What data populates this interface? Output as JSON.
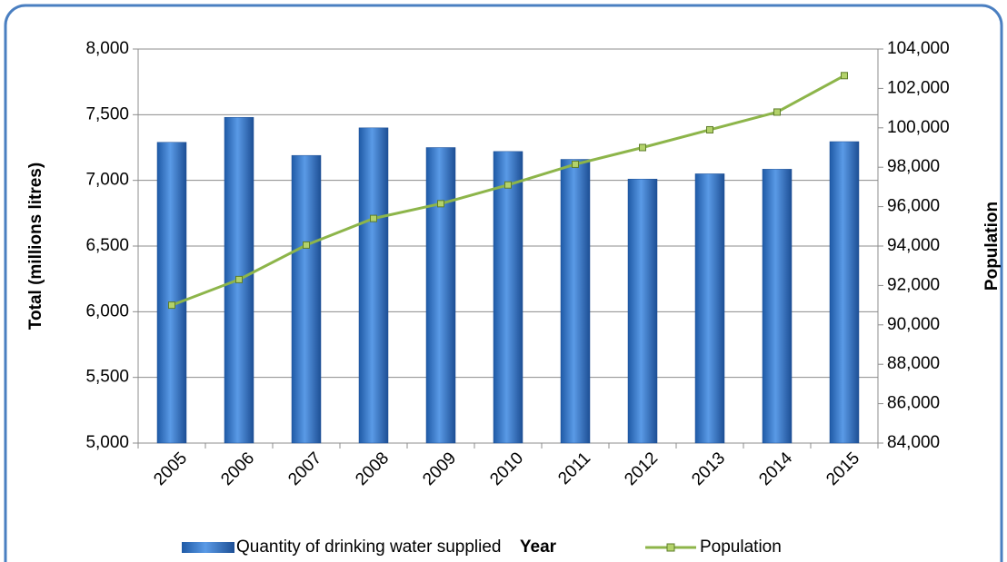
{
  "chart_data": {
    "type": "bar",
    "x_label": "Year",
    "y_label": "Total (millions litres)",
    "y2_label": "Population",
    "categories": [
      "2005",
      "2006",
      "2007",
      "2008",
      "2009",
      "2010",
      "2011",
      "2012",
      "2013",
      "2014",
      "2015"
    ],
    "series": [
      {
        "name": "Quantity of drinking water supplied",
        "type": "bar",
        "color": "#2e75c8",
        "values": [
          7290,
          7480,
          7190,
          7400,
          7250,
          7220,
          7160,
          7010,
          7050,
          7085,
          7295
        ]
      },
      {
        "name": "Population",
        "type": "line",
        "axis": "y2",
        "color": "#8db54a",
        "values": [
          91000,
          92300,
          94050,
          95400,
          96150,
          97100,
          98150,
          99000,
          99900,
          100800,
          102650
        ]
      }
    ],
    "ylim": [
      5000,
      8000
    ],
    "yticks": [
      {
        "value": 5000,
        "label": "5,000"
      },
      {
        "value": 5500,
        "label": "5,500"
      },
      {
        "value": 6000,
        "label": "6,000"
      },
      {
        "value": 6500,
        "label": "6,500"
      },
      {
        "value": 7000,
        "label": "7,000"
      },
      {
        "value": 7500,
        "label": "7,500"
      },
      {
        "value": 8000,
        "label": "8,000"
      }
    ],
    "y2lim": [
      84000,
      104000
    ],
    "y2ticks": [
      {
        "value": 84000,
        "label": "84,000"
      },
      {
        "value": 86000,
        "label": "86,000"
      },
      {
        "value": 88000,
        "label": "88,000"
      },
      {
        "value": 90000,
        "label": "90,000"
      },
      {
        "value": 92000,
        "label": "92,000"
      },
      {
        "value": 94000,
        "label": "94,000"
      },
      {
        "value": 96000,
        "label": "96,000"
      },
      {
        "value": 98000,
        "label": "98,000"
      },
      {
        "value": 100000,
        "label": "100,000"
      },
      {
        "value": 102000,
        "label": "102,000"
      },
      {
        "value": 104000,
        "label": "104,000"
      }
    ],
    "grid": true,
    "legend": "bottom"
  }
}
